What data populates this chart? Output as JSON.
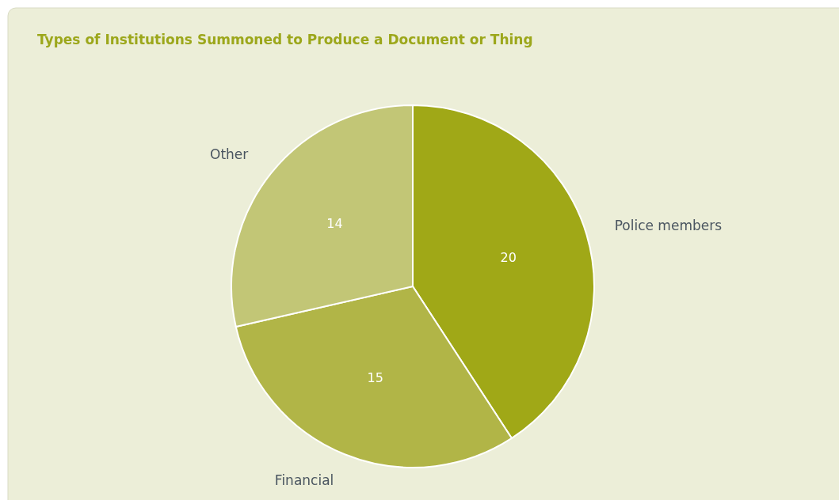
{
  "chart_data": {
    "type": "pie",
    "title": "Types of Institutions Summoned to Produce a Document or Thing",
    "categories": [
      "Police members",
      "Financial",
      "Other"
    ],
    "values": [
      20,
      15,
      14
    ],
    "colors": [
      "#a0a817",
      "#b1b547",
      "#c2c676"
    ],
    "data_labels": true
  }
}
